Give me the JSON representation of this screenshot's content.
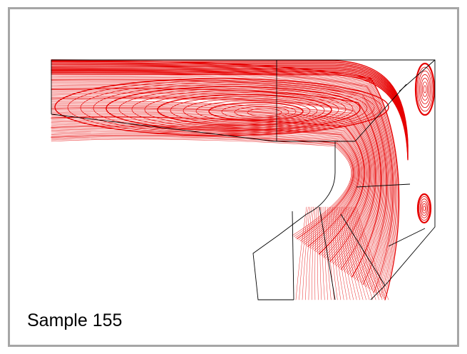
{
  "caption": "Sample 155",
  "colors": {
    "streamline": "#e60000",
    "boundary": "#000000",
    "frame": "#a6a6a6"
  }
}
